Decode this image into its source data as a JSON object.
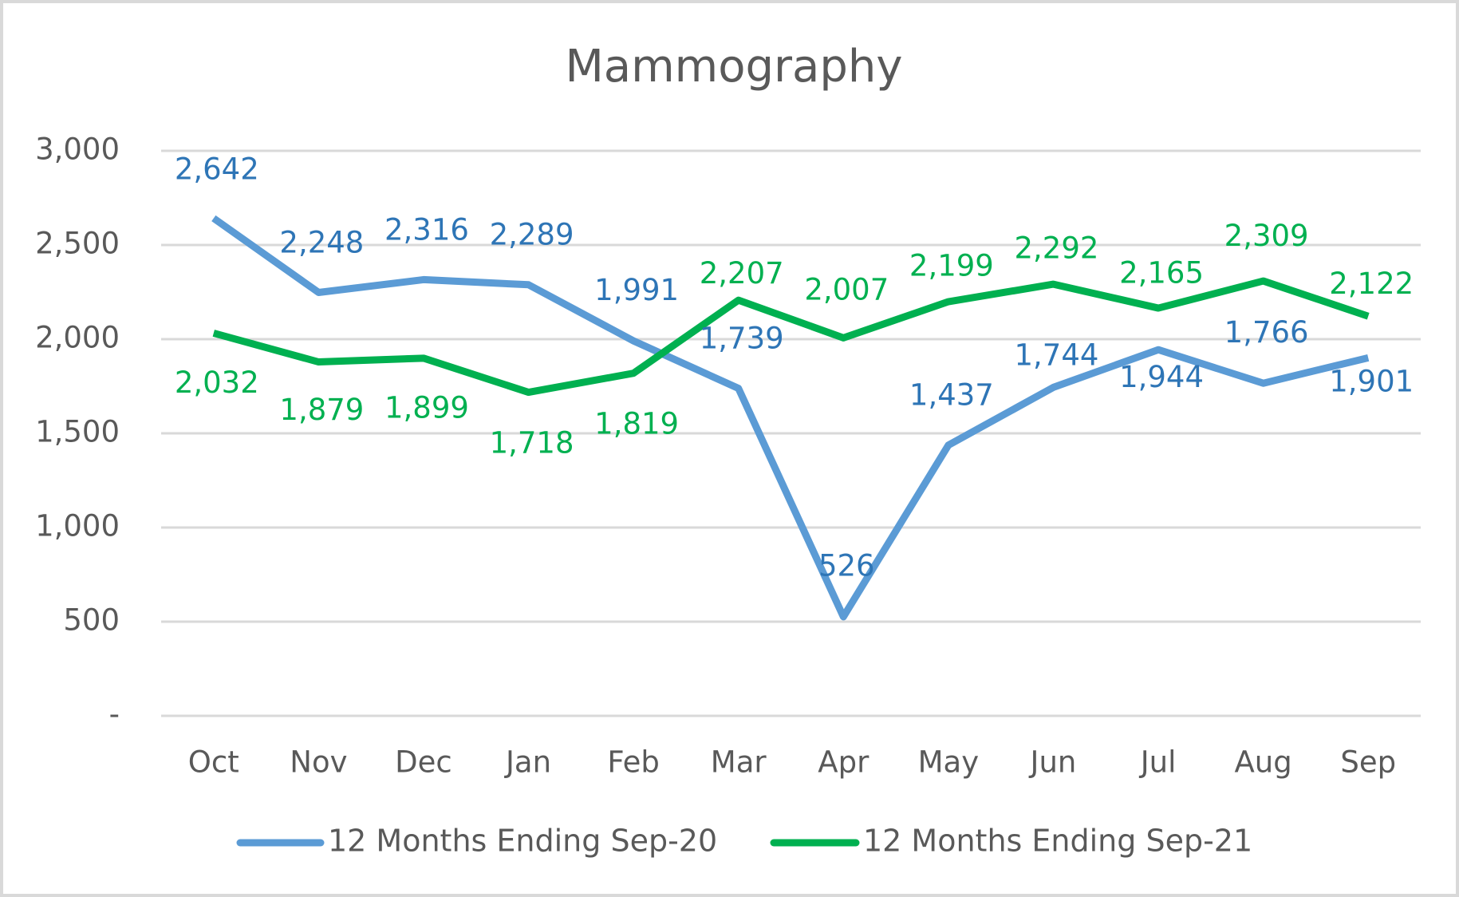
{
  "chart_data": {
    "type": "line",
    "title": "Mammography",
    "categories": [
      "Oct",
      "Nov",
      "Dec",
      "Jan",
      "Feb",
      "Mar",
      "Apr",
      "May",
      "Jun",
      "Jul",
      "Aug",
      "Sep"
    ],
    "series": [
      {
        "name": "12 Months Ending Sep-20",
        "color": "#5b9bd5",
        "values": [
          2642,
          2248,
          2316,
          2289,
          1991,
          1739,
          526,
          1437,
          1744,
          1944,
          1766,
          1901
        ],
        "value_labels": [
          "2,642",
          "2,248",
          "2,316",
          "2,289",
          "1,991",
          "1,739",
          "526",
          "1,437",
          "1,744",
          "1,944",
          "1,766",
          "1,901"
        ]
      },
      {
        "name": "12 Months Ending Sep-21",
        "color": "#00b050",
        "values": [
          2032,
          1879,
          1899,
          1718,
          1819,
          2207,
          2007,
          2199,
          2292,
          2165,
          2309,
          2122
        ],
        "value_labels": [
          "2,032",
          "1,879",
          "1,899",
          "1,718",
          "1,819",
          "2,207",
          "2,007",
          "2,199",
          "2,292",
          "2,165",
          "2,309",
          "2,122"
        ]
      }
    ],
    "ylim": [
      0,
      3000
    ],
    "yticks": [
      {
        "value": 0,
        "label": "-"
      },
      500,
      {
        "value": 1000,
        "label": "1,000"
      },
      {
        "value": 1500,
        "label": "1,500"
      },
      {
        "value": 2000,
        "label": "2,000"
      },
      {
        "value": 2500,
        "label": "2,500"
      },
      {
        "value": 3000,
        "label": "3,000"
      }
    ],
    "grid": true,
    "legend": "bottom"
  }
}
